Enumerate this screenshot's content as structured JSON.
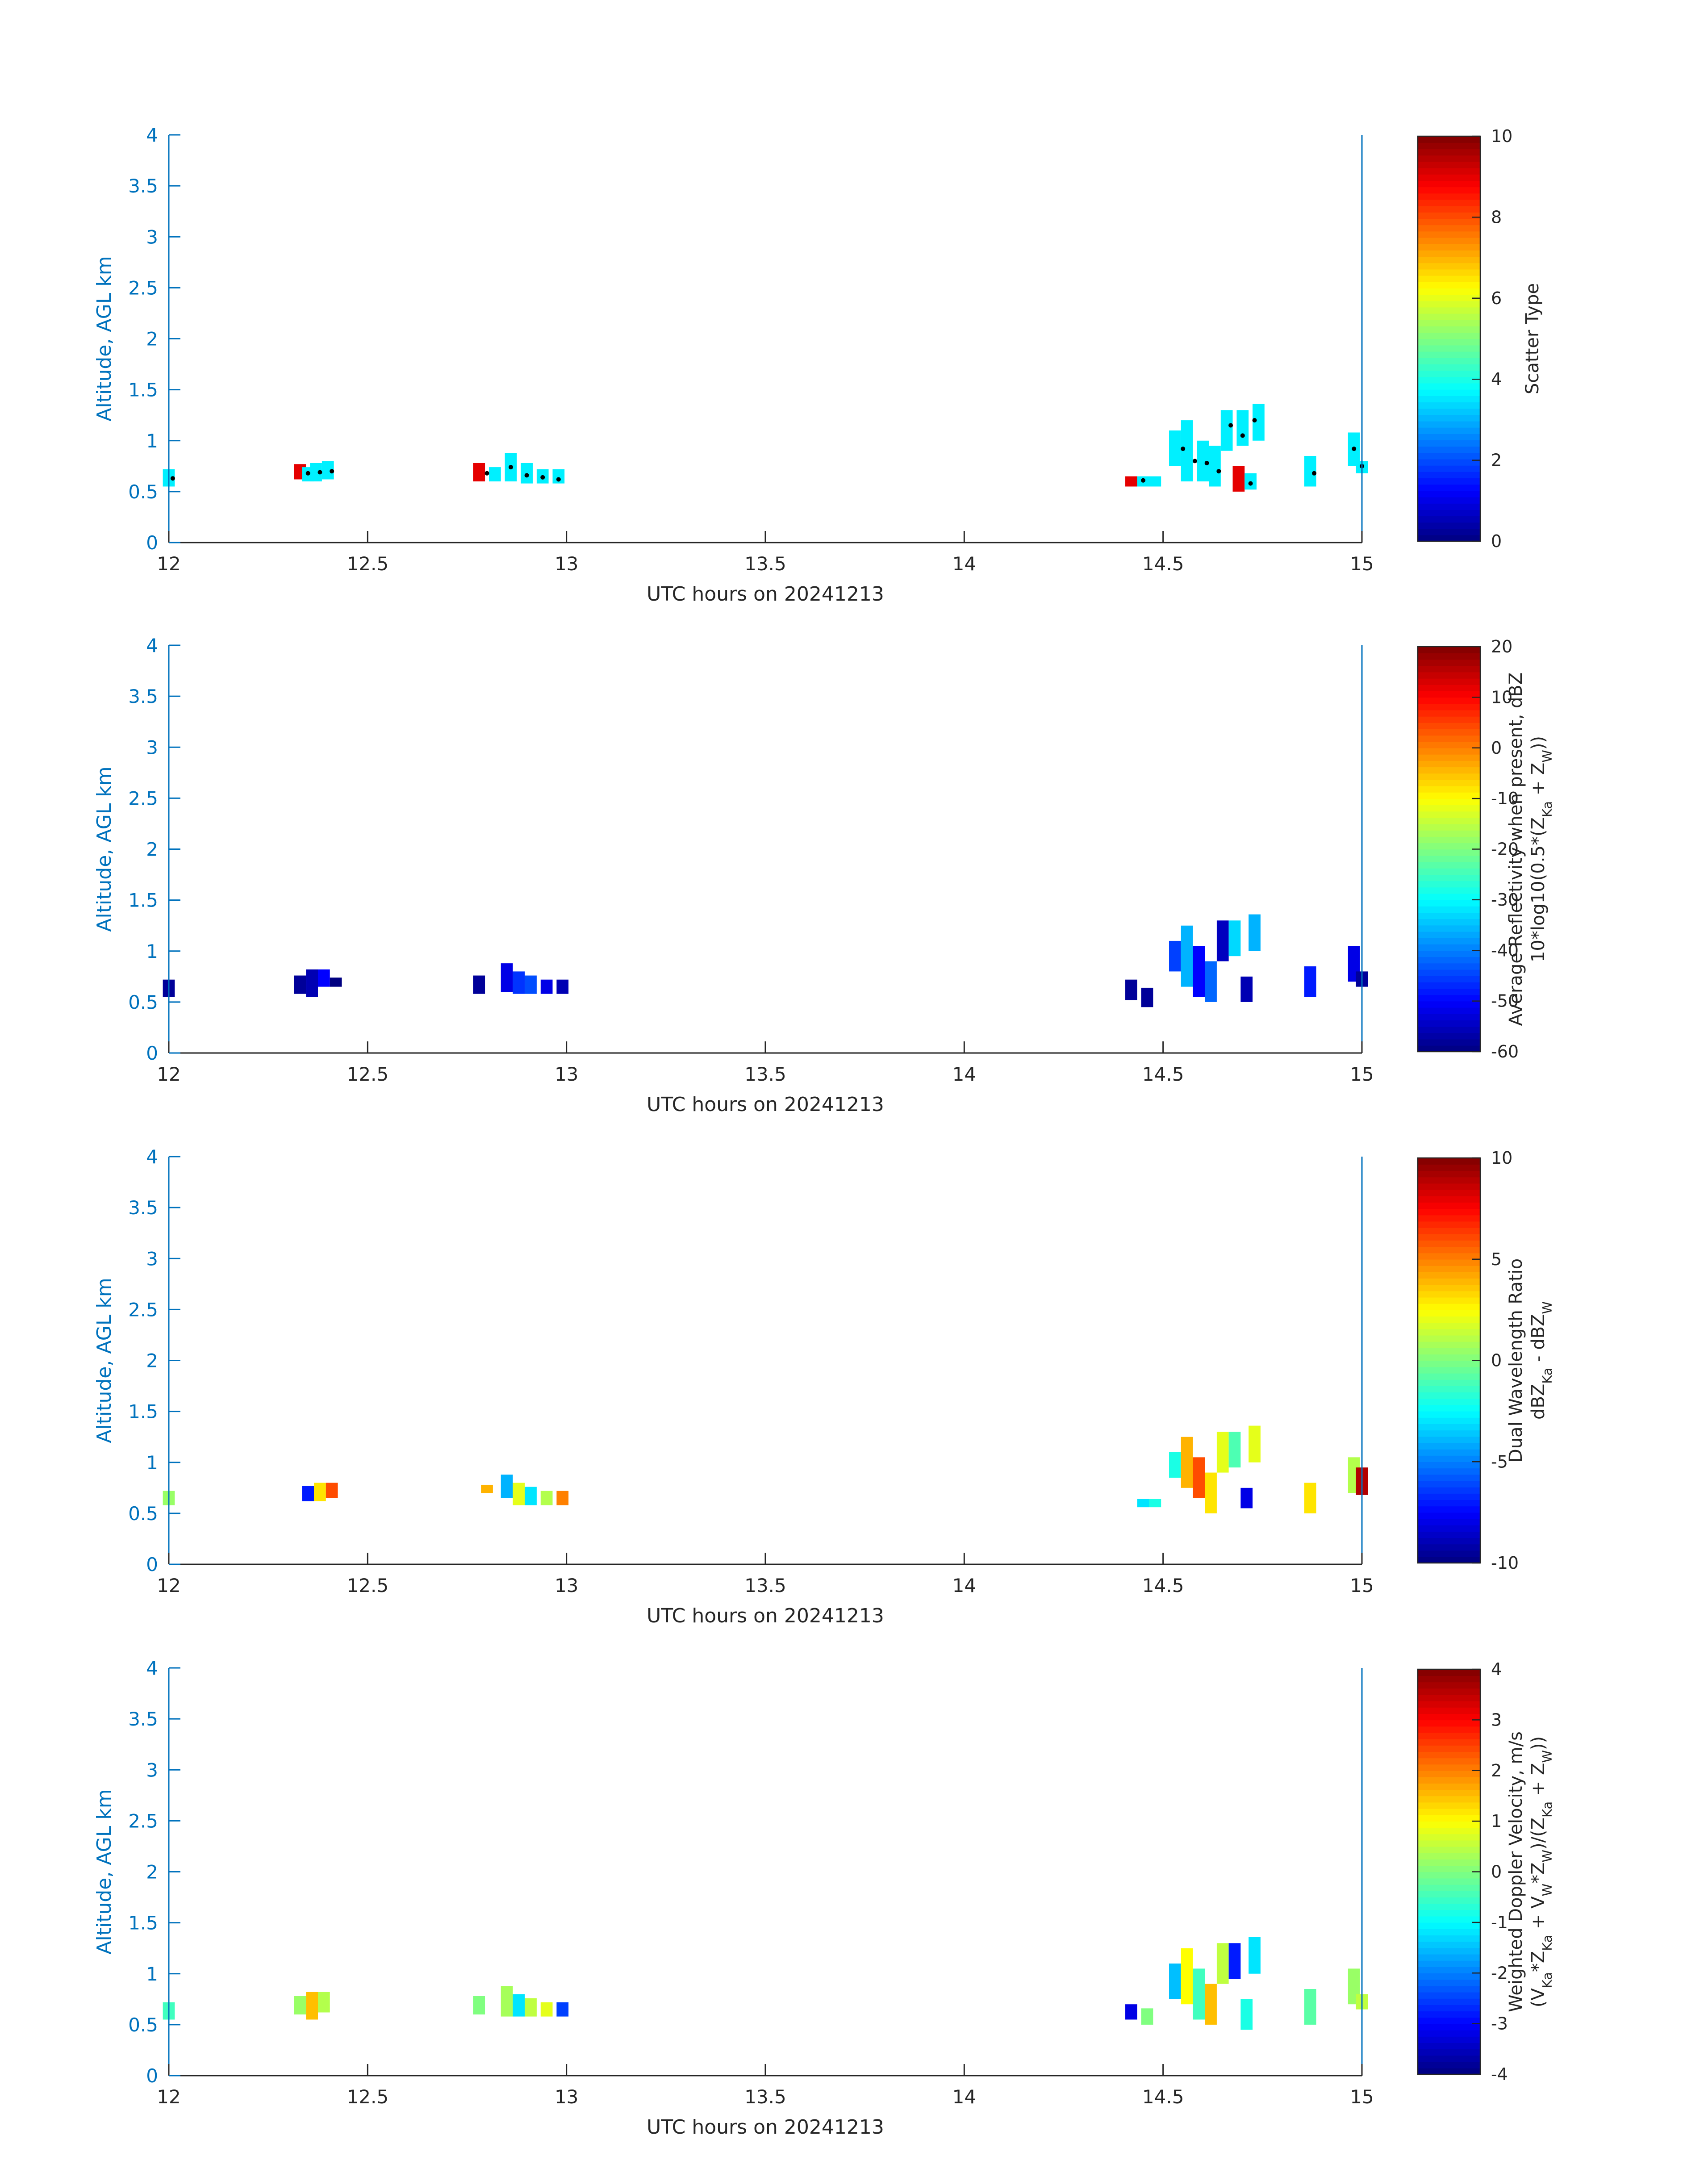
{
  "chart_data": [
    {
      "type": "heatmap",
      "xlabel": "UTC hours on 20241213",
      "ylabel": "Altitude, AGL km",
      "xlim": [
        12,
        15
      ],
      "ylim": [
        0,
        4
      ],
      "xticks": [
        "12",
        "12.5",
        "13",
        "13.5",
        "14",
        "14.5",
        "15"
      ],
      "yticks": [
        "0",
        "0.5",
        "1",
        "1.5",
        "2",
        "2.5",
        "3",
        "3.5",
        "4"
      ],
      "colorbar": {
        "label_lines": [
          "Scatter Type"
        ],
        "range": [
          0,
          10
        ],
        "ticks": [
          "0",
          "2",
          "4",
          "6",
          "8",
          "10"
        ],
        "colormap": "jet"
      },
      "cells": [
        [
          12.0,
          0.55,
          0.72,
          3.6
        ],
        [
          12.33,
          0.62,
          0.77,
          9.0
        ],
        [
          12.35,
          0.6,
          0.74,
          3.6
        ],
        [
          12.37,
          0.6,
          0.78,
          3.6
        ],
        [
          12.4,
          0.62,
          0.8,
          3.6
        ],
        [
          12.78,
          0.6,
          0.78,
          9.0
        ],
        [
          12.82,
          0.6,
          0.74,
          3.6
        ],
        [
          12.86,
          0.6,
          0.88,
          3.6
        ],
        [
          12.9,
          0.58,
          0.78,
          3.6
        ],
        [
          12.94,
          0.58,
          0.72,
          3.6
        ],
        [
          12.98,
          0.58,
          0.72,
          3.6
        ],
        [
          14.42,
          0.55,
          0.65,
          9.0
        ],
        [
          14.45,
          0.55,
          0.65,
          3.6
        ],
        [
          14.48,
          0.55,
          0.65,
          3.6
        ],
        [
          14.53,
          0.75,
          1.1,
          3.6
        ],
        [
          14.56,
          0.6,
          1.2,
          3.6
        ],
        [
          14.6,
          0.6,
          1.0,
          3.6
        ],
        [
          14.63,
          0.55,
          0.95,
          3.6
        ],
        [
          14.66,
          0.9,
          1.3,
          3.6
        ],
        [
          14.69,
          0.5,
          0.75,
          9.0
        ],
        [
          14.7,
          0.95,
          1.3,
          3.6
        ],
        [
          14.72,
          0.52,
          0.68,
          3.6
        ],
        [
          14.74,
          1.0,
          1.36,
          3.6
        ],
        [
          14.87,
          0.55,
          0.85,
          3.6
        ],
        [
          14.98,
          0.75,
          1.08,
          3.6
        ],
        [
          15.0,
          0.68,
          0.8,
          3.6
        ]
      ],
      "dots": [
        [
          12.01,
          0.63
        ],
        [
          12.35,
          0.68
        ],
        [
          12.38,
          0.69
        ],
        [
          12.41,
          0.7
        ],
        [
          12.8,
          0.68
        ],
        [
          12.86,
          0.74
        ],
        [
          12.9,
          0.66
        ],
        [
          12.94,
          0.64
        ],
        [
          12.98,
          0.62
        ],
        [
          14.45,
          0.61
        ],
        [
          14.55,
          0.92
        ],
        [
          14.58,
          0.8
        ],
        [
          14.61,
          0.78
        ],
        [
          14.64,
          0.7
        ],
        [
          14.67,
          1.15
        ],
        [
          14.7,
          1.05
        ],
        [
          14.73,
          1.2
        ],
        [
          14.72,
          0.58
        ],
        [
          14.88,
          0.68
        ],
        [
          14.98,
          0.92
        ],
        [
          15.0,
          0.75
        ]
      ]
    },
    {
      "type": "heatmap",
      "xlabel": "UTC hours on 20241213",
      "ylabel": "Altitude, AGL km",
      "xlim": [
        12,
        15
      ],
      "ylim": [
        0,
        4
      ],
      "xticks": [
        "12",
        "12.5",
        "13",
        "13.5",
        "14",
        "14.5",
        "15"
      ],
      "yticks": [
        "0",
        "0.5",
        "1",
        "1.5",
        "2",
        "2.5",
        "3",
        "3.5",
        "4"
      ],
      "colorbar": {
        "label_lines": [
          "Average Reflectivity when present, dBZ",
          "10*log10(0.5*(Z_Ka + Z_W))"
        ],
        "range": [
          -60,
          20
        ],
        "ticks": [
          "-60",
          "-50",
          "-40",
          "-30",
          "-20",
          "-10",
          "0",
          "10",
          "20"
        ],
        "colormap": "jet"
      },
      "cells": [
        [
          12.0,
          0.55,
          0.72,
          -58
        ],
        [
          12.33,
          0.58,
          0.76,
          -58
        ],
        [
          12.36,
          0.55,
          0.82,
          -56
        ],
        [
          12.39,
          0.65,
          0.82,
          -50
        ],
        [
          12.42,
          0.65,
          0.74,
          -60
        ],
        [
          12.78,
          0.58,
          0.76,
          -58
        ],
        [
          12.85,
          0.6,
          0.88,
          -52
        ],
        [
          12.88,
          0.58,
          0.8,
          -46
        ],
        [
          12.91,
          0.58,
          0.76,
          -44
        ],
        [
          12.95,
          0.58,
          0.72,
          -52
        ],
        [
          12.99,
          0.58,
          0.72,
          -56
        ],
        [
          14.42,
          0.52,
          0.72,
          -58
        ],
        [
          14.46,
          0.45,
          0.64,
          -58
        ],
        [
          14.53,
          0.8,
          1.1,
          -45
        ],
        [
          14.56,
          0.65,
          1.25,
          -36
        ],
        [
          14.59,
          0.55,
          1.05,
          -50
        ],
        [
          14.62,
          0.5,
          0.9,
          -42
        ],
        [
          14.65,
          0.9,
          1.3,
          -55
        ],
        [
          14.68,
          0.95,
          1.3,
          -33
        ],
        [
          14.71,
          0.5,
          0.75,
          -56
        ],
        [
          14.73,
          1.0,
          1.36,
          -36
        ],
        [
          14.87,
          0.55,
          0.85,
          -48
        ],
        [
          14.98,
          0.7,
          1.05,
          -52
        ],
        [
          15.0,
          0.65,
          0.8,
          -58
        ]
      ],
      "dots": []
    },
    {
      "type": "heatmap",
      "xlabel": "UTC hours on 20241213",
      "ylabel": "Altitude, AGL km",
      "xlim": [
        12,
        15
      ],
      "ylim": [
        0,
        4
      ],
      "xticks": [
        "12",
        "12.5",
        "13",
        "13.5",
        "14",
        "14.5",
        "15"
      ],
      "yticks": [
        "0",
        "0.5",
        "1",
        "1.5",
        "2",
        "2.5",
        "3",
        "3.5",
        "4"
      ],
      "colorbar": {
        "label_lines": [
          "Dual Wavelength Ratio",
          "dBZ_Ka - dBZ_W"
        ],
        "range": [
          -10,
          10
        ],
        "ticks": [
          "-10",
          "-5",
          "0",
          "5",
          "10"
        ],
        "colormap": "jet"
      },
      "cells": [
        [
          12.0,
          0.58,
          0.72,
          0.5
        ],
        [
          12.35,
          0.62,
          0.77,
          -7
        ],
        [
          12.38,
          0.62,
          0.8,
          3
        ],
        [
          12.41,
          0.65,
          0.8,
          6
        ],
        [
          12.8,
          0.7,
          0.78,
          4
        ],
        [
          12.85,
          0.65,
          0.88,
          -4
        ],
        [
          12.88,
          0.58,
          0.8,
          2
        ],
        [
          12.91,
          0.58,
          0.76,
          -3
        ],
        [
          12.95,
          0.58,
          0.72,
          1
        ],
        [
          12.99,
          0.58,
          0.72,
          5
        ],
        [
          14.45,
          0.56,
          0.64,
          -3
        ],
        [
          14.48,
          0.56,
          0.64,
          -2
        ],
        [
          14.53,
          0.85,
          1.1,
          -2
        ],
        [
          14.56,
          0.75,
          1.25,
          4
        ],
        [
          14.59,
          0.65,
          1.05,
          6
        ],
        [
          14.62,
          0.5,
          0.9,
          3
        ],
        [
          14.65,
          0.9,
          1.3,
          2
        ],
        [
          14.68,
          0.95,
          1.3,
          -1
        ],
        [
          14.71,
          0.55,
          0.75,
          -8
        ],
        [
          14.73,
          1.0,
          1.36,
          2
        ],
        [
          14.87,
          0.5,
          0.8,
          3
        ],
        [
          14.98,
          0.7,
          1.05,
          1
        ],
        [
          15.0,
          0.68,
          0.95,
          9
        ]
      ],
      "dots": []
    },
    {
      "type": "heatmap",
      "xlabel": "UTC hours on 20241213",
      "ylabel": "Altitude, AGL km",
      "xlim": [
        12,
        15
      ],
      "ylim": [
        0,
        4
      ],
      "xticks": [
        "12",
        "12.5",
        "13",
        "13.5",
        "14",
        "14.5",
        "15"
      ],
      "yticks": [
        "0",
        "0.5",
        "1",
        "1.5",
        "2",
        "2.5",
        "3",
        "3.5",
        "4"
      ],
      "colorbar": {
        "label_lines": [
          "Weighted Doppler Velocity, m/s",
          "(V_Ka*Z_Ka + V_W*Z_W)/(Z_Ka + Z_W))"
        ],
        "range": [
          -4,
          4
        ],
        "ticks": [
          "-4",
          "-3",
          "-2",
          "-1",
          "0",
          "1",
          "2",
          "3",
          "4"
        ],
        "colormap": "jet"
      },
      "cells": [
        [
          12.0,
          0.55,
          0.72,
          -0.5
        ],
        [
          12.33,
          0.6,
          0.78,
          0.2
        ],
        [
          12.36,
          0.55,
          0.82,
          1.5
        ],
        [
          12.39,
          0.62,
          0.82,
          0.4
        ],
        [
          12.78,
          0.6,
          0.78,
          0.0
        ],
        [
          12.85,
          0.58,
          0.88,
          0.3
        ],
        [
          12.88,
          0.58,
          0.8,
          -1.2
        ],
        [
          12.91,
          0.58,
          0.76,
          0.5
        ],
        [
          12.95,
          0.58,
          0.72,
          0.8
        ],
        [
          12.99,
          0.58,
          0.72,
          -2.5
        ],
        [
          14.42,
          0.55,
          0.7,
          -3.2
        ],
        [
          14.46,
          0.5,
          0.66,
          0.0
        ],
        [
          14.53,
          0.75,
          1.1,
          -1.5
        ],
        [
          14.56,
          0.7,
          1.25,
          1.0
        ],
        [
          14.59,
          0.55,
          1.05,
          -0.5
        ],
        [
          14.62,
          0.5,
          0.9,
          1.5
        ],
        [
          14.65,
          0.9,
          1.3,
          0.5
        ],
        [
          14.68,
          0.95,
          1.3,
          -2.8
        ],
        [
          14.71,
          0.45,
          0.75,
          -0.8
        ],
        [
          14.73,
          1.0,
          1.36,
          -1.2
        ],
        [
          14.87,
          0.5,
          0.85,
          -0.3
        ],
        [
          14.98,
          0.7,
          1.05,
          0.2
        ],
        [
          15.0,
          0.65,
          0.8,
          0.5
        ]
      ],
      "dots": []
    }
  ]
}
